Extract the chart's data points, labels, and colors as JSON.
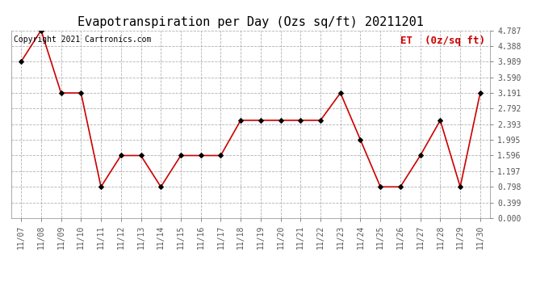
{
  "title": "Evapotranspiration per Day (Ozs sq/ft) 20211201",
  "legend_label": "ET  (0z/sq ft)",
  "copyright_text": "Copyright 2021 Cartronics.com",
  "x_labels": [
    "11/07",
    "11/08",
    "11/09",
    "11/10",
    "11/11",
    "11/12",
    "11/13",
    "11/14",
    "11/15",
    "11/16",
    "11/17",
    "11/18",
    "11/19",
    "11/20",
    "11/21",
    "11/22",
    "11/23",
    "11/24",
    "11/25",
    "11/26",
    "11/27",
    "11/28",
    "11/29",
    "11/30"
  ],
  "y_values": [
    3.989,
    4.787,
    3.191,
    3.191,
    0.798,
    1.596,
    1.596,
    0.798,
    1.596,
    1.596,
    1.596,
    2.494,
    2.494,
    2.494,
    2.494,
    2.494,
    3.191,
    1.995,
    0.798,
    0.798,
    1.596,
    2.494,
    0.798,
    3.191
  ],
  "y_ticks": [
    0.0,
    0.399,
    0.798,
    1.197,
    1.596,
    1.995,
    2.393,
    2.792,
    3.191,
    3.59,
    3.989,
    4.388,
    4.787
  ],
  "line_color": "#cc0000",
  "marker_color": "#000000",
  "grid_color": "#aaaaaa",
  "background_color": "#ffffff",
  "legend_color": "#cc0000",
  "copyright_color": "#000000",
  "title_fontsize": 11,
  "legend_fontsize": 9,
  "copyright_fontsize": 7,
  "tick_fontsize": 7
}
